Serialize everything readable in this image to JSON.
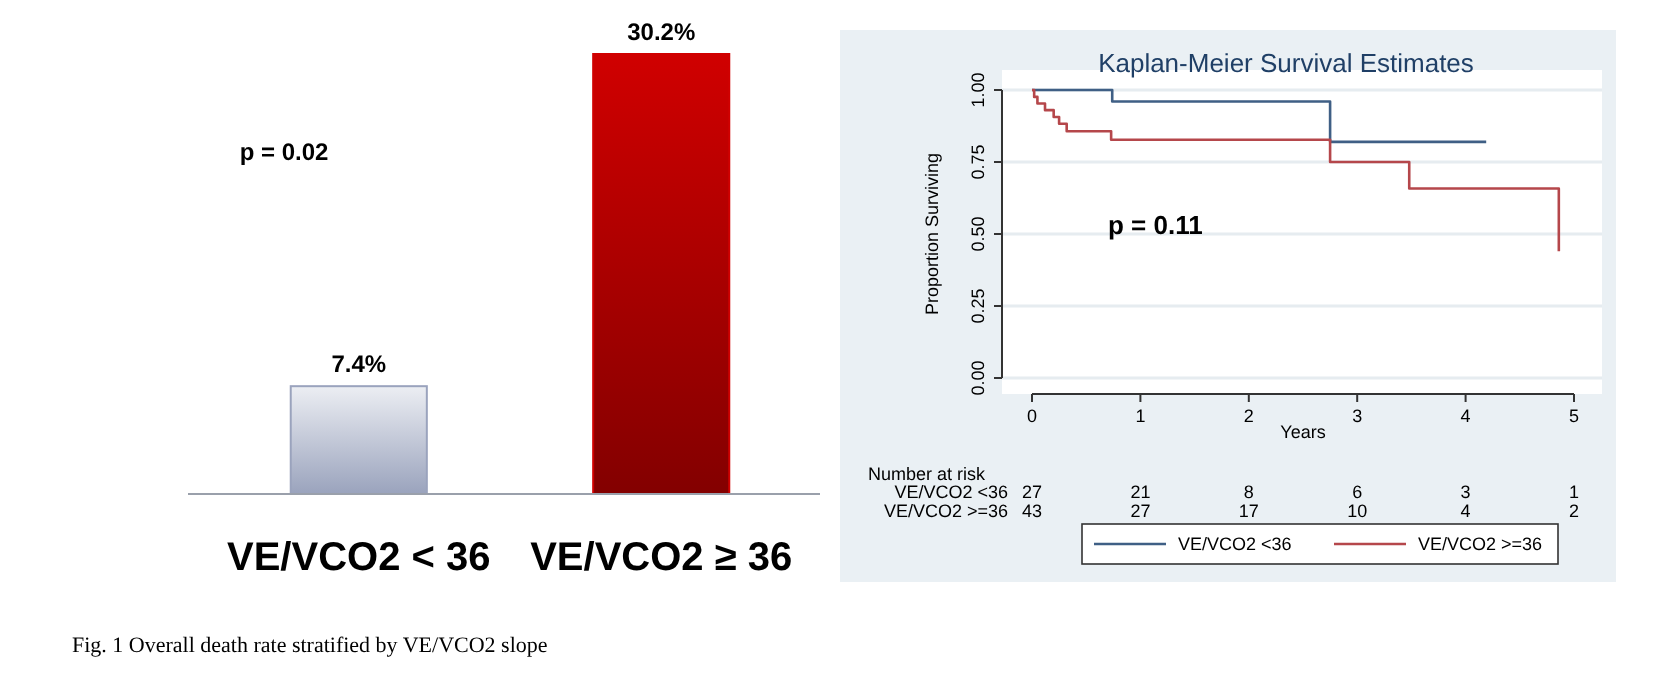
{
  "chart_data": [
    {
      "type": "bar",
      "categories": [
        "VE/VCO2 < 36",
        "VE/VCO2 ≥ 36"
      ],
      "values": [
        7.4,
        30.2
      ],
      "colors": [
        "#9aa3bd",
        "#d00000"
      ],
      "value_labels": [
        "7.4%",
        "30.2%"
      ],
      "annotations": [
        "p = 0.02",
        "Fig. 1 Overall death rate stratified by VE/VCO2 slope"
      ]
    },
    {
      "type": "step",
      "title": "Kaplan-Meier Survival Estimates",
      "xlabel": "Years",
      "ylabel": "Proportion Surviving",
      "xlim": [
        0,
        5
      ],
      "xticks": [
        0,
        1,
        2,
        3,
        4,
        5
      ],
      "ylim": [
        0,
        1
      ],
      "yticks": [
        {
          "value": 0,
          "label": "0.00"
        },
        {
          "value": 0.25,
          "label": "0.25"
        },
        {
          "value": 0.5,
          "label": "0.50"
        },
        {
          "value": 0.75,
          "label": "0.75"
        },
        {
          "value": 1,
          "label": "1.00"
        }
      ],
      "grid": "y",
      "legend": "bottom",
      "series": [
        {
          "name": "VE/VCO2 <36",
          "color": "#3f5f85",
          "x": [
            0,
            0.74,
            2.75,
            4.19
          ],
          "values": [
            1,
            0.96,
            0.82,
            0.82
          ]
        },
        {
          "name": "VE/VCO2 >=36",
          "color": "#b5474b",
          "x": [
            0,
            0.02,
            0.05,
            0.12,
            0.2,
            0.25,
            0.32,
            0.73,
            2.75,
            3.48,
            4.86
          ],
          "values": [
            1,
            0.976,
            0.953,
            0.93,
            0.906,
            0.883,
            0.857,
            0.827,
            0.75,
            0.658,
            0.44
          ]
        }
      ],
      "annotations": [
        "p = 0.11",
        "Number at risk",
        "VE/VCO2 <36",
        "27",
        "21",
        "8",
        "6",
        "3",
        "1",
        "VE/VCO2 >=36",
        "43",
        "27",
        "17",
        "10",
        "4",
        "2"
      ]
    }
  ]
}
